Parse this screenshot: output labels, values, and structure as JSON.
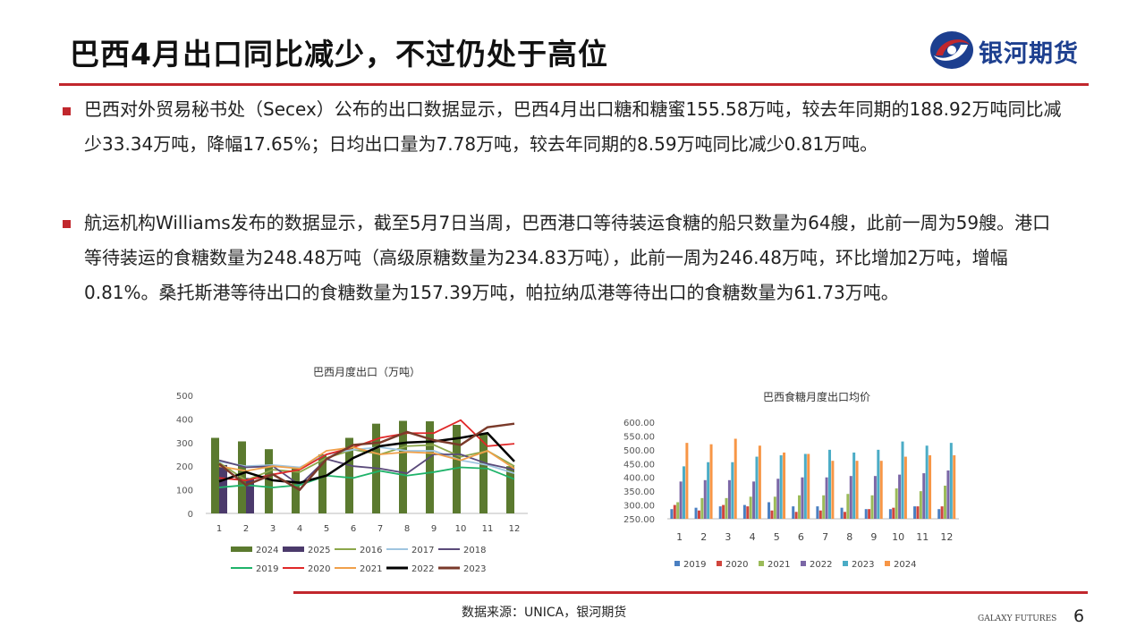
{
  "title": "巴西4月出口同比减少，不过仍处于高位",
  "logo": {
    "text": "银河期货",
    "icon": "galaxy-swirl-icon",
    "colors": [
      "#c1272d",
      "#1d3f8f"
    ]
  },
  "paragraphs": [
    "巴西对外贸易秘书处（Secex）公布的出口数据显示，巴西4月出口糖和糖蜜155.58万吨，较去年同期的188.92万吨同比减少33.34万吨，降幅17.65%；日均出口量为7.78万吨，较去年同期的8.59万吨同比减少0.81万吨。",
    "航运机构Williams发布的数据显示，截至5月7日当周，巴西港口等待装运食糖的船只数量为64艘，此前一周为59艘。港口等待装运的食糖数量为248.48万吨（高级原糖数量为234.83万吨），此前一周为246.48万吨，环比增加2万吨，增幅0.81%。桑托斯港等待出口的食糖数量为157.39万吨，帕拉纳瓜港等待出口的食糖数量为61.73万吨。"
  ],
  "source": "数据来源：UNICA，银河期货",
  "footer_brand": "GALAXY FUTURES",
  "page_number": "6",
  "chart_data": [
    {
      "type": "bar+line",
      "title": "巴西月度出口（万吨）",
      "categories": [
        "1",
        "2",
        "3",
        "4",
        "5",
        "6",
        "7",
        "8",
        "9",
        "10",
        "11",
        "12"
      ],
      "ylim": [
        0,
        500
      ],
      "yticks": [
        "0",
        "100",
        "200",
        "300",
        "400",
        "500"
      ],
      "legend_position": "bottom",
      "bar_series": [
        {
          "name": "2024",
          "color": "#5b7a2f",
          "values": [
            320,
            305,
            272,
            190,
            250,
            320,
            380,
            392,
            390,
            375,
            335,
            200
          ]
        },
        {
          "name": "2025",
          "color": "#4b3a6b",
          "values": [
            205,
            150,
            null,
            null,
            null,
            null,
            null,
            null,
            null,
            null,
            null,
            null
          ]
        }
      ],
      "line_series": [
        {
          "name": "2016",
          "color": "#8ca64a",
          "values": [
            215,
            140,
            185,
            175,
            235,
            270,
            250,
            285,
            290,
            240,
            265,
            200
          ]
        },
        {
          "name": "2017",
          "color": "#9fc5e0",
          "values": [
            220,
            200,
            205,
            195,
            250,
            270,
            280,
            265,
            265,
            225,
            205,
            170
          ]
        },
        {
          "name": "2018",
          "color": "#5a4a7a",
          "values": [
            225,
            195,
            200,
            120,
            230,
            200,
            190,
            170,
            250,
            250,
            210,
            185
          ]
        },
        {
          "name": "2019",
          "color": "#1fb36a",
          "values": [
            110,
            120,
            110,
            120,
            160,
            150,
            180,
            160,
            175,
            195,
            190,
            145
          ]
        },
        {
          "name": "2020",
          "color": "#e02828",
          "values": [
            150,
            140,
            165,
            185,
            250,
            280,
            320,
            340,
            340,
            395,
            285,
            295
          ]
        },
        {
          "name": "2021",
          "color": "#f0a04a",
          "values": [
            200,
            180,
            200,
            190,
            265,
            280,
            250,
            260,
            255,
            225,
            265,
            190
          ]
        },
        {
          "name": "2022",
          "color": "#000000",
          "values": [
            135,
            175,
            140,
            130,
            160,
            235,
            285,
            300,
            305,
            320,
            340,
            220
          ]
        },
        {
          "name": "2023",
          "color": "#7a3a2a",
          "values": [
            210,
            120,
            165,
            100,
            230,
            290,
            300,
            345,
            310,
            290,
            365,
            380
          ]
        }
      ]
    },
    {
      "type": "bar",
      "title": "巴西食糖月度出口均价",
      "categories": [
        "1",
        "2",
        "3",
        "4",
        "5",
        "6",
        "7",
        "8",
        "9",
        "10",
        "11",
        "12"
      ],
      "ylim": [
        250,
        600
      ],
      "yticks": [
        "250.00",
        "300.00",
        "350.00",
        "400.00",
        "450.00",
        "500.00",
        "550.00",
        "600.00"
      ],
      "legend_position": "bottom",
      "series": [
        {
          "name": "2019",
          "color": "#4a7fc1",
          "values": [
            285,
            290,
            295,
            300,
            310,
            295,
            295,
            290,
            285,
            285,
            295,
            285
          ]
        },
        {
          "name": "2020",
          "color": "#d0453d",
          "values": [
            300,
            280,
            300,
            295,
            280,
            275,
            280,
            275,
            285,
            290,
            295,
            295
          ]
        },
        {
          "name": "2021",
          "color": "#9bbb59",
          "values": [
            310,
            325,
            325,
            330,
            330,
            335,
            335,
            340,
            335,
            360,
            350,
            370
          ]
        },
        {
          "name": "2022",
          "color": "#7b67a6",
          "values": [
            385,
            390,
            390,
            385,
            395,
            400,
            400,
            405,
            405,
            410,
            415,
            425
          ]
        },
        {
          "name": "2023",
          "color": "#4bacc6",
          "values": [
            440,
            455,
            455,
            475,
            480,
            485,
            500,
            490,
            500,
            530,
            515,
            525
          ]
        },
        {
          "name": "2024",
          "color": "#f79646",
          "values": [
            525,
            520,
            540,
            515,
            490,
            485,
            460,
            460,
            460,
            475,
            480,
            480
          ]
        }
      ]
    }
  ]
}
